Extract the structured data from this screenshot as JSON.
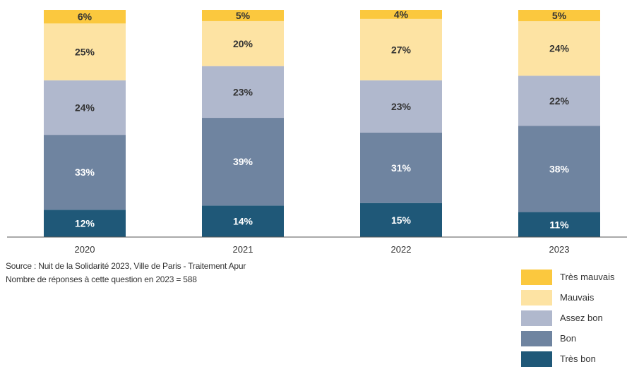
{
  "chart_data": {
    "type": "bar",
    "stacked": true,
    "categories": [
      "2020",
      "2021",
      "2022",
      "2023"
    ],
    "series": [
      {
        "name": "Très bon",
        "color": "#1f5878",
        "values": [
          12,
          14,
          15,
          11
        ]
      },
      {
        "name": "Bon",
        "color": "#6f84a0",
        "values": [
          33,
          39,
          31,
          38
        ]
      },
      {
        "name": "Assez bon",
        "color": "#b0b8cd",
        "values": [
          24,
          23,
          23,
          22
        ]
      },
      {
        "name": "Mauvais",
        "color": "#fde3a3",
        "values": [
          25,
          20,
          27,
          24
        ]
      },
      {
        "name": "Très mauvais",
        "color": "#fbc83e",
        "values": [
          6,
          5,
          4,
          5
        ]
      }
    ],
    "value_suffix": "%",
    "ylim": [
      0,
      100
    ],
    "grid": false,
    "legend_position": "bottom-right"
  },
  "source": {
    "line1": "Source : Nuit de la Solidarité 2023, Ville de Paris - Traitement Apur",
    "line2": "Nombre de réponses à cette question en 2023 = 588"
  },
  "legend": [
    {
      "label": "Très mauvais",
      "color": "#fbc83e"
    },
    {
      "label": "Mauvais",
      "color": "#fde3a3"
    },
    {
      "label": "Assez bon",
      "color": "#b0b8cd"
    },
    {
      "label": "Bon",
      "color": "#6f84a0"
    },
    {
      "label": "Très bon",
      "color": "#1f5878"
    }
  ]
}
